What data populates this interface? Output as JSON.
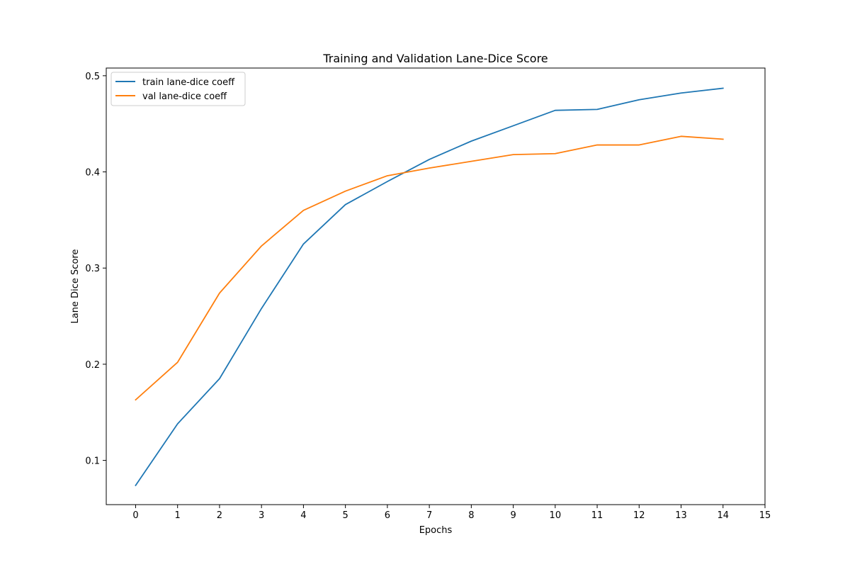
{
  "chart_data": {
    "type": "line",
    "title": "Training and Validation Lane-Dice Score",
    "xlabel": "Epochs",
    "ylabel": "Lane Dice Score",
    "x": [
      0,
      1,
      2,
      3,
      4,
      5,
      6,
      7,
      8,
      9,
      10,
      11,
      12,
      13,
      14
    ],
    "xticks": [
      "0",
      "1",
      "2",
      "3",
      "4",
      "5",
      "6",
      "7",
      "8",
      "9",
      "10",
      "11",
      "12",
      "13",
      "14",
      "15"
    ],
    "yticks": [
      "0.1",
      "0.2",
      "0.3",
      "0.4",
      "0.5"
    ],
    "xlim": [
      -0.7,
      15
    ],
    "ylim": [
      0.054,
      0.508
    ],
    "grid": false,
    "legend_position": "top-left",
    "series": [
      {
        "name": "train lane-dice coeff",
        "color": "#1f77b4",
        "values": [
          0.074,
          0.138,
          0.185,
          0.258,
          0.325,
          0.366,
          0.39,
          0.413,
          0.432,
          0.448,
          0.464,
          0.465,
          0.475,
          0.482,
          0.487
        ]
      },
      {
        "name": "val lane-dice coeff",
        "color": "#ff7f0e",
        "values": [
          0.163,
          0.202,
          0.274,
          0.323,
          0.36,
          0.38,
          0.396,
          0.404,
          0.411,
          0.418,
          0.419,
          0.428,
          0.428,
          0.437,
          0.434
        ]
      }
    ]
  }
}
